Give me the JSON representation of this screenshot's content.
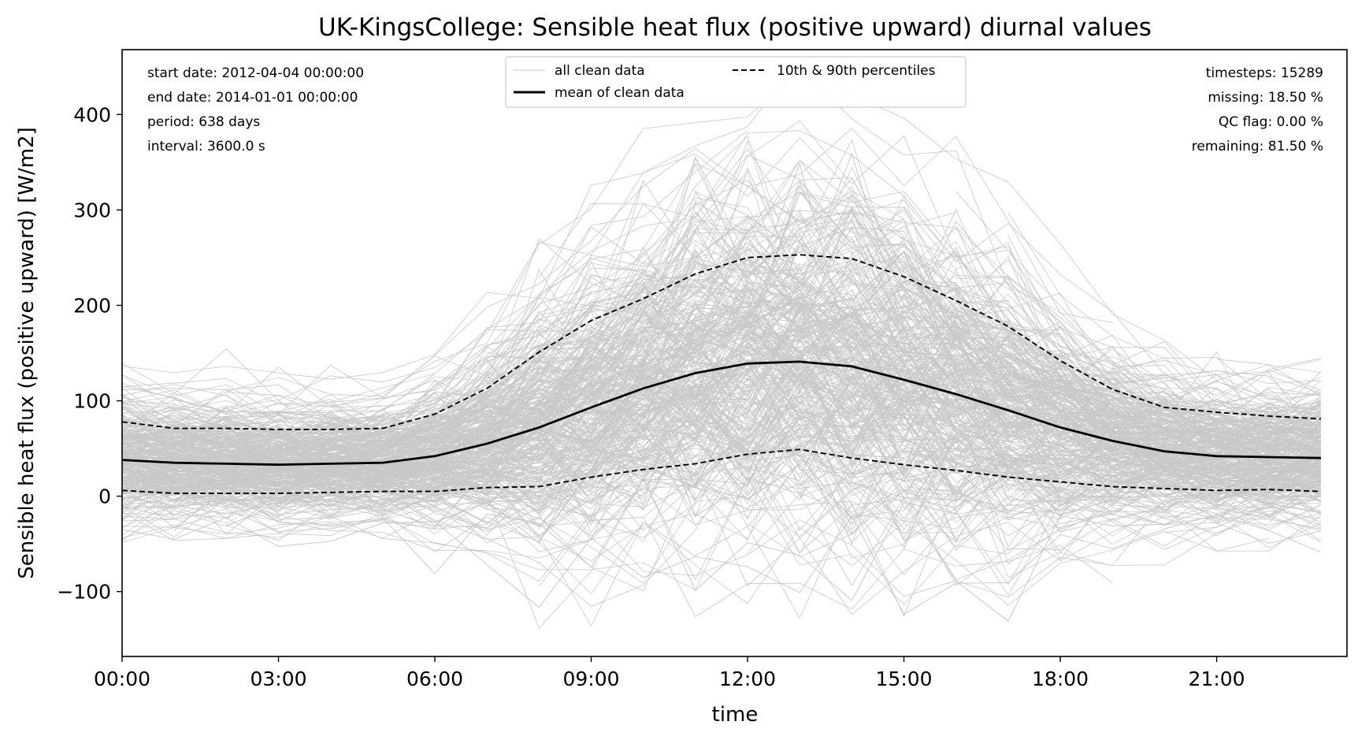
{
  "chart_data": {
    "type": "line",
    "title": "UK-KingsCollege: Sensible heat flux (positive upward) diurnal values",
    "xlabel": "time",
    "ylabel": "Sensible heat flux (positive upward) [W/m2]",
    "xlim": [
      0,
      23.5
    ],
    "ylim": [
      -168,
      468
    ],
    "x_ticks": [
      {
        "value": 0,
        "label": "00:00"
      },
      {
        "value": 3,
        "label": "03:00"
      },
      {
        "value": 6,
        "label": "06:00"
      },
      {
        "value": 9,
        "label": "09:00"
      },
      {
        "value": 12,
        "label": "12:00"
      },
      {
        "value": 15,
        "label": "15:00"
      },
      {
        "value": 18,
        "label": "18:00"
      },
      {
        "value": 21,
        "label": "21:00"
      }
    ],
    "y_ticks": [
      {
        "value": -100,
        "label": "−100"
      },
      {
        "value": 0,
        "label": "0"
      },
      {
        "value": 100,
        "label": "100"
      },
      {
        "value": 200,
        "label": "200"
      },
      {
        "value": 300,
        "label": "300"
      },
      {
        "value": 400,
        "label": "400"
      }
    ],
    "x": [
      0,
      1,
      2,
      3,
      4,
      5,
      6,
      7,
      8,
      9,
      10,
      11,
      12,
      13,
      14,
      15,
      16,
      17,
      18,
      19,
      20,
      21,
      22,
      23
    ],
    "series": [
      {
        "name": "mean of clean data",
        "style": "solid",
        "color": "#000000",
        "values": [
          38,
          35,
          34,
          33,
          34,
          35,
          42,
          55,
          72,
          93,
          113,
          129,
          139,
          141,
          136,
          122,
          107,
          90,
          72,
          58,
          47,
          42,
          41,
          40
        ]
      },
      {
        "name": "10th & 90th percentiles",
        "style": "dashed",
        "color": "#000000",
        "values": [
          78,
          71,
          71,
          70,
          70,
          71,
          86,
          113,
          151,
          184,
          207,
          233,
          250,
          253,
          249,
          230,
          205,
          178,
          142,
          112,
          93,
          88,
          84,
          81
        ]
      },
      {
        "name": "",
        "style": "dashed",
        "color": "#000000",
        "values": [
          6,
          3,
          3,
          3,
          4,
          5,
          5,
          9,
          10,
          20,
          28,
          34,
          44,
          49,
          40,
          33,
          27,
          20,
          15,
          10,
          8,
          6,
          7,
          5
        ]
      }
    ],
    "background": {
      "name": "all clean data",
      "color": "#c8c8c8",
      "line_count": 420
    },
    "legend": {
      "position": "top-center",
      "entries": [
        {
          "label": "all clean data",
          "style": "thin-gray"
        },
        {
          "label": "10th & 90th percentiles",
          "style": "dashed"
        },
        {
          "label": "mean of clean data",
          "style": "solid"
        }
      ]
    },
    "info_left": [
      "start date: 2012-04-04 00:00:00",
      "end date: 2014-01-01 00:00:00",
      "period: 638 days",
      "interval: 3600.0 s"
    ],
    "info_right": [
      "timesteps: 15289",
      "missing: 18.50 %",
      "QC flag: 0.00 %",
      "remaining: 81.50 %"
    ]
  }
}
